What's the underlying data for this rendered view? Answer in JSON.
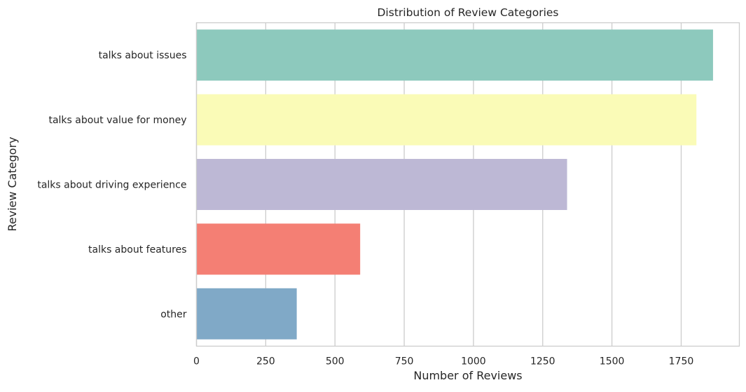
{
  "chart_data": {
    "type": "bar",
    "orientation": "horizontal",
    "title": "Distribution of Review Categories",
    "xlabel": "Number of Reviews",
    "ylabel": "Review Category",
    "xlim": [
      0,
      1960
    ],
    "xticks": [
      0,
      250,
      500,
      750,
      1000,
      1250,
      1500,
      1750
    ],
    "grid": "vertical",
    "categories": [
      "talks about issues",
      "talks about value for money",
      "talks about driving experience",
      "talks about features",
      "other"
    ],
    "values": [
      1865,
      1805,
      1338,
      591,
      362
    ],
    "colors": [
      "#8dc9bd",
      "#fafbb7",
      "#bdb8d5",
      "#f47f74",
      "#80a9c7"
    ]
  }
}
